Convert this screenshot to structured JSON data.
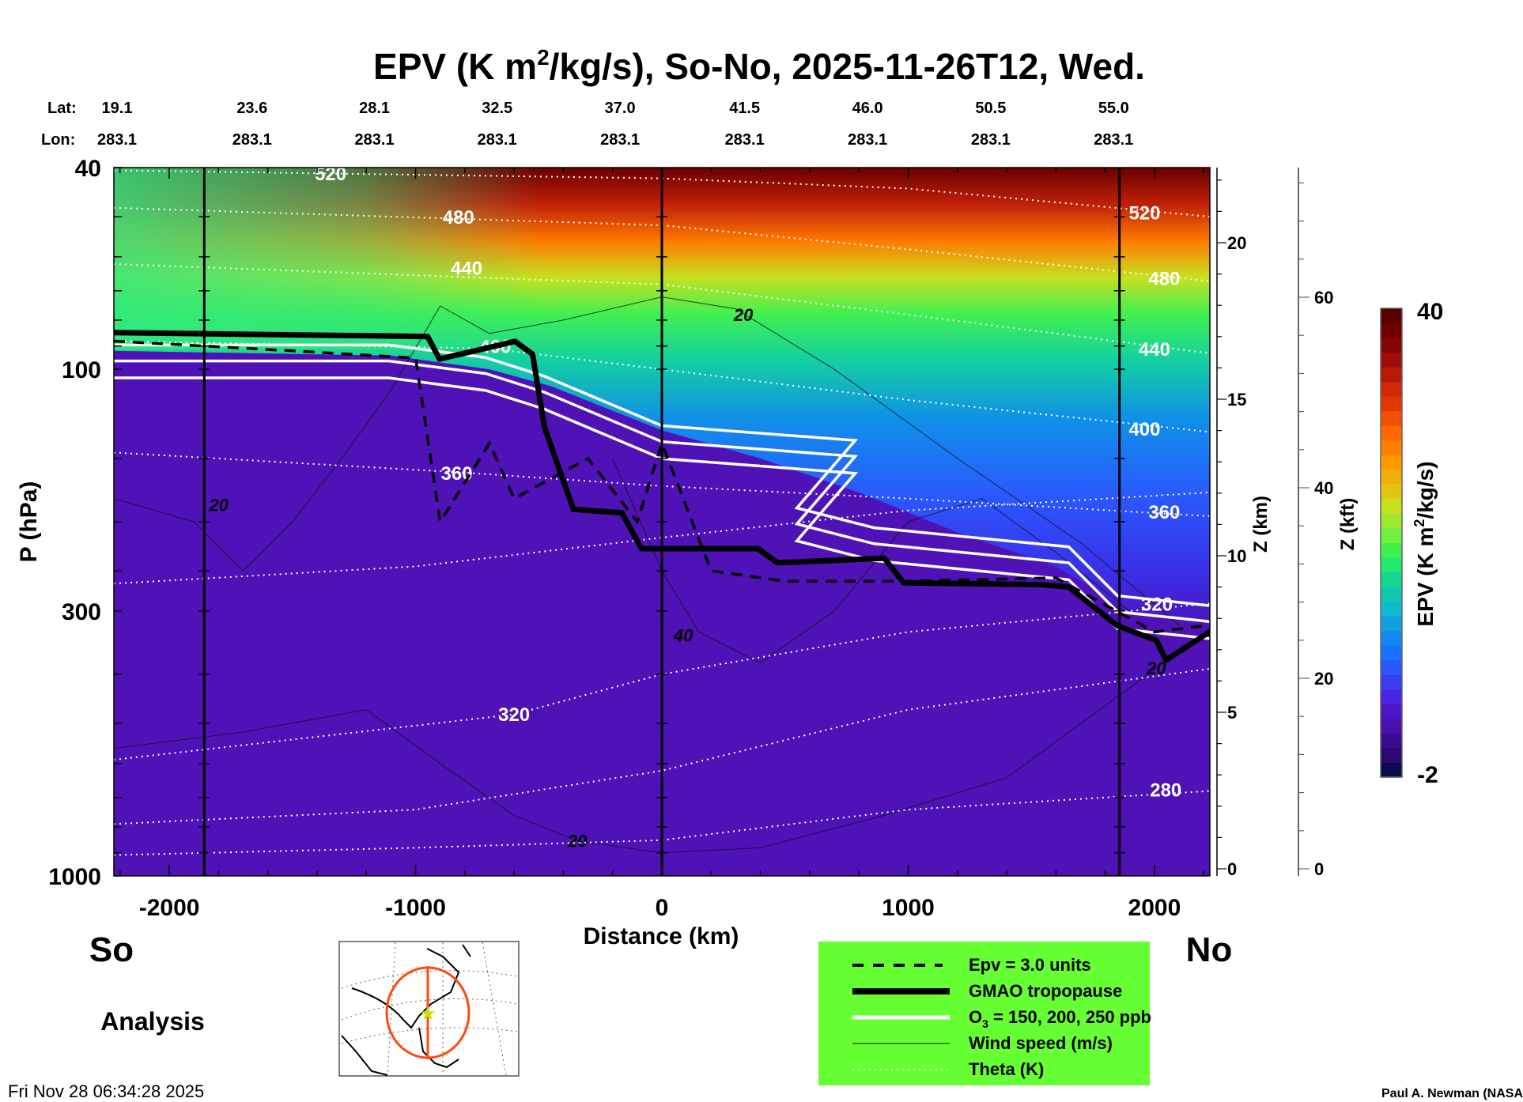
{
  "header": {
    "title_pre": "EPV (K m",
    "title_sup": "2",
    "title_post": "/kg/s), So-No, 2025-11-26T12, Wed.",
    "lat_label": "Lat:",
    "lon_label": "Lon:"
  },
  "stations": [
    {
      "lat": "19.1",
      "lon": "283.1",
      "distance_km": -2225
    },
    {
      "lat": "23.6",
      "lon": "283.1",
      "distance_km": -1728
    },
    {
      "lat": "28.1",
      "lon": "283.1",
      "distance_km": -1231
    },
    {
      "lat": "32.5",
      "lon": "283.1",
      "distance_km": -733
    },
    {
      "lat": "37.0",
      "lon": "283.1",
      "distance_km": -234
    },
    {
      "lat": "41.5",
      "lon": "283.1",
      "distance_km": 272
    },
    {
      "lat": "46.0",
      "lon": "283.1",
      "distance_km": 771
    },
    {
      "lat": "50.5",
      "lon": "283.1",
      "distance_km": 1271
    },
    {
      "lat": "55.0",
      "lon": "283.1",
      "distance_km": 1770
    }
  ],
  "chart_data": {
    "type": "heatmap",
    "title": "EPV (K m²/kg/s), So-No, 2025-11-26T12, Wed.",
    "xlabel": "Distance (km)",
    "ylabel": "P (hPa)",
    "y2label": "Z (km)",
    "y3label": "Z (kft)",
    "xlim": [
      -2225,
      2225
    ],
    "ylim": [
      1000,
      40
    ],
    "yscale": "log",
    "xticks": [
      {
        "v": -2000,
        "label": "-2000"
      },
      {
        "v": -1000,
        "label": "-1000"
      },
      {
        "v": 0,
        "label": "0"
      },
      {
        "v": 1000,
        "label": "1000"
      },
      {
        "v": 2000,
        "label": "2000"
      }
    ],
    "yticks": [
      {
        "v": 40,
        "label": "40"
      },
      {
        "v": 100,
        "label": "100"
      },
      {
        "v": 300,
        "label": "300"
      },
      {
        "v": 1000,
        "label": "1000"
      }
    ],
    "zkm_ticks": [
      {
        "v": 0,
        "label": "0"
      },
      {
        "v": 5,
        "label": "5"
      },
      {
        "v": 10,
        "label": "10"
      },
      {
        "v": 15,
        "label": "15"
      },
      {
        "v": 20,
        "label": "20"
      }
    ],
    "zkft_ticks": [
      {
        "v": 0,
        "label": "0"
      },
      {
        "v": 20,
        "label": "20"
      },
      {
        "v": 40,
        "label": "40"
      },
      {
        "v": 60,
        "label": "60"
      }
    ],
    "vertical_lines_km": [
      -1858,
      0,
      1858
    ],
    "colorbar": {
      "title_pre": "EPV (K m",
      "title_sup": "2",
      "title_post": "/kg/s)",
      "min": -2,
      "max": 40,
      "min_label": "-2",
      "max_label": "40",
      "colors": [
        "#0a0a50",
        "#2a0a70",
        "#3c0a90",
        "#4a10b0",
        "#5014c8",
        "#4a24e0",
        "#3a3cf0",
        "#2a58ff",
        "#1a70ff",
        "#1488f0",
        "#10a0e0",
        "#10b8d0",
        "#10c8b0",
        "#14d890",
        "#20e870",
        "#40f050",
        "#70f040",
        "#a0e830",
        "#c8e020",
        "#e0c810",
        "#f0b008",
        "#ff9800",
        "#ff8000",
        "#ff6800",
        "#f05000",
        "#e03800",
        "#d02808",
        "#b81808",
        "#a00c08",
        "#880404",
        "#700000",
        "#580000"
      ]
    },
    "theta_contours": [
      {
        "label": "280",
        "points": [
          [
            -2225,
            910
          ],
          [
            -1000,
            880
          ],
          [
            0,
            850
          ],
          [
            1000,
            740
          ],
          [
            2225,
            680
          ]
        ],
        "labels_at": [
          [
            2046,
            675
          ]
        ]
      },
      {
        "label": "",
        "points": [
          [
            -2225,
            790
          ],
          [
            -1000,
            740
          ],
          [
            0,
            620
          ],
          [
            1000,
            470
          ],
          [
            2225,
            390
          ]
        ],
        "labels_at": []
      },
      {
        "label": "320",
        "points": [
          [
            -2225,
            590
          ],
          [
            -600,
            480
          ],
          [
            0,
            400
          ],
          [
            1000,
            330
          ],
          [
            2225,
            290
          ]
        ],
        "labels_at": [
          [
            -600,
            479
          ],
          [
            2010,
            290
          ]
        ]
      },
      {
        "label": "",
        "points": [
          [
            -2225,
            265
          ],
          [
            -1000,
            245
          ],
          [
            0,
            215
          ],
          [
            1000,
            190
          ],
          [
            2225,
            175
          ]
        ],
        "labels_at": []
      },
      {
        "label": "360",
        "points": [
          [
            -2225,
            146
          ],
          [
            -800,
            160
          ],
          [
            0,
            170
          ],
          [
            1000,
            180
          ],
          [
            2225,
            195
          ]
        ],
        "labels_at": [
          [
            -833,
            160
          ],
          [
            2040,
            191
          ]
        ]
      },
      {
        "label": "400",
        "points": [
          [
            -2225,
            88
          ],
          [
            -700,
            91
          ],
          [
            0,
            100
          ],
          [
            1000,
            115
          ],
          [
            2225,
            133
          ]
        ],
        "labels_at": [
          [
            -676,
            90
          ],
          [
            1960,
            131
          ]
        ]
      },
      {
        "label": "440",
        "points": [
          [
            -2225,
            62
          ],
          [
            0,
            68
          ],
          [
            1000,
            78
          ],
          [
            2225,
            93
          ]
        ],
        "labels_at": [
          [
            -793,
            63
          ],
          [
            2000,
            91
          ]
        ]
      },
      {
        "label": "480",
        "points": [
          [
            -2225,
            48
          ],
          [
            0,
            52
          ],
          [
            1000,
            58
          ],
          [
            2225,
            67
          ]
        ],
        "labels_at": [
          [
            -826,
            50
          ],
          [
            2040,
            66
          ]
        ]
      },
      {
        "label": "520",
        "points": [
          [
            -2225,
            40.5
          ],
          [
            0,
            42
          ],
          [
            1000,
            44
          ],
          [
            2225,
            50
          ]
        ],
        "labels_at": [
          [
            -1345,
            41
          ],
          [
            1960,
            49
          ]
        ]
      }
    ],
    "wind_contours": [
      {
        "label": "20",
        "points": [
          [
            -2225,
            180
          ],
          [
            -1900,
            200
          ],
          [
            -1700,
            250
          ],
          [
            -1500,
            200
          ],
          [
            -1300,
            150
          ],
          [
            -1100,
            110
          ],
          [
            -900,
            75
          ],
          [
            -700,
            85
          ],
          [
            -400,
            80
          ],
          [
            0,
            72
          ],
          [
            300,
            76
          ],
          [
            700,
            100
          ],
          [
            1200,
            150
          ],
          [
            1700,
            220
          ],
          [
            2100,
            320
          ]
        ],
        "labels_at": [
          [
            -1799,
            185
          ],
          [
            331,
            78
          ]
        ]
      },
      {
        "label": "40",
        "points": [
          [
            -200,
            150
          ],
          [
            0,
            250
          ],
          [
            150,
            330
          ],
          [
            400,
            380
          ],
          [
            700,
            300
          ],
          [
            1000,
            200
          ],
          [
            1300,
            180
          ],
          [
            1600,
            230
          ],
          [
            1900,
            300
          ]
        ],
        "labels_at": [
          [
            87,
            335
          ]
        ]
      },
      {
        "label": "20",
        "points": [
          [
            -2225,
            560
          ],
          [
            -1700,
            520
          ],
          [
            -1200,
            470
          ],
          [
            -900,
            600
          ],
          [
            -600,
            760
          ],
          [
            -343,
            853
          ],
          [
            0,
            900
          ],
          [
            400,
            880
          ],
          [
            900,
            760
          ],
          [
            1400,
            640
          ],
          [
            2008,
            389
          ]
        ],
        "labels_at": [
          [
            -343,
            853
          ],
          [
            2008,
            389
          ]
        ]
      }
    ],
    "tropopause": [
      [
        -2225,
        84.7
      ],
      [
        -951,
        86.2
      ],
      [
        -903,
        95.5
      ],
      [
        -596,
        88.1
      ],
      [
        -525,
        93.4
      ],
      [
        -477,
        130
      ],
      [
        -359,
        189
      ],
      [
        -162,
        192
      ],
      [
        -83,
        226
      ],
      [
        390,
        226
      ],
      [
        469,
        241
      ],
      [
        903,
        236
      ],
      [
        982,
        264
      ],
      [
        1534,
        266
      ],
      [
        1652,
        269
      ],
      [
        1850,
        321
      ],
      [
        2008,
        343
      ],
      [
        2047,
        375
      ],
      [
        2227,
        329
      ]
    ],
    "o3_200": [
      [
        -2225,
        96.3
      ],
      [
        -1109,
        96.3
      ],
      [
        -714,
        102
      ],
      [
        -477,
        111
      ],
      [
        0,
        139
      ],
      [
        785,
        148.6
      ],
      [
        548,
        202
      ],
      [
        861,
        221
      ],
      [
        1652,
        241
      ],
      [
        1850,
        301
      ],
      [
        2227,
        315
      ]
    ],
    "epv_3": [
      [
        -2225,
        88
      ],
      [
        -1500,
        92
      ],
      [
        -1000,
        95
      ],
      [
        -900,
        200
      ],
      [
        -700,
        140
      ],
      [
        -600,
        180
      ],
      [
        -300,
        150
      ],
      [
        -100,
        200
      ],
      [
        0,
        140
      ],
      [
        200,
        250
      ],
      [
        500,
        262
      ],
      [
        1000,
        262
      ],
      [
        1600,
        258
      ],
      [
        2000,
        330
      ],
      [
        2225,
        320
      ]
    ]
  },
  "labels": {
    "south": "So",
    "north": "No",
    "analysis": "Analysis",
    "timestamp": "Fri Nov 28 06:34:28 2025",
    "credit": "Paul A. Newman (NASA"
  },
  "legend": {
    "bg": "#66ff33",
    "items": [
      {
        "label": "Epv = 3.0 units",
        "style": "dashed"
      },
      {
        "label": "GMAO tropopause",
        "style": "thick"
      },
      {
        "label_pre": "O",
        "label_sub": "3",
        "label_post": " = 150, 200, 250 ppb",
        "style": "white"
      },
      {
        "label": "Wind speed (m/s)",
        "style": "thin"
      },
      {
        "label": "Theta (K)",
        "style": "dotted"
      }
    ]
  }
}
